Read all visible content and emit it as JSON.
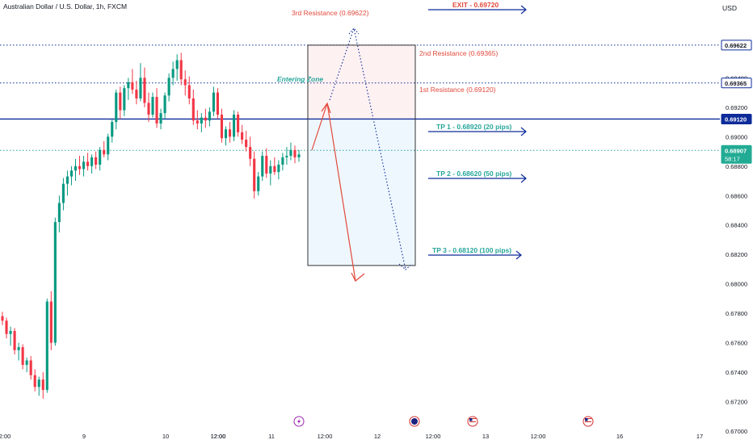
{
  "header": {
    "symbol_title": "Australian Dollar / U.S. Dollar, 1h, FXCM",
    "currency": "USD"
  },
  "colors": {
    "up": "#089981",
    "down": "#f23645",
    "blue": "#0d2b99",
    "accent": "#e2493c",
    "teal": "#26a69a",
    "price_tag": "#22ab94"
  },
  "chart_data": {
    "type": "candlestick",
    "ylim": [
      0.67,
      0.6983
    ],
    "y_ticks": [
      "0.67000",
      "0.67200",
      "0.67400",
      "0.67600",
      "0.67800",
      "0.68000",
      "0.68200",
      "0.68400",
      "0.68600",
      "0.68800",
      "0.69000",
      "0.69200",
      "0.69400"
    ],
    "x_ticks": [
      "2:00",
      "9",
      "12:00",
      "10",
      "12:00",
      "11",
      "12:00",
      "12",
      "12:00",
      "13",
      "12:00",
      "16",
      "17"
    ],
    "price_labels": [
      {
        "label": "0.69622",
        "value": 0.69622,
        "style": "outline"
      },
      {
        "label": "0.69365",
        "value": 0.69365,
        "style": "outline"
      },
      {
        "label": "0.69120",
        "value": 0.6912,
        "style": "blue"
      },
      {
        "label": "0.68907",
        "time": "58:17",
        "value": 0.68907,
        "style": "teal"
      }
    ],
    "candles": [
      [
        0.6778,
        0.6781,
        0.6772,
        0.6775
      ],
      [
        0.6775,
        0.6777,
        0.6763,
        0.6766
      ],
      [
        0.6766,
        0.6771,
        0.6758,
        0.6768
      ],
      [
        0.6768,
        0.677,
        0.6752,
        0.6755
      ],
      [
        0.6755,
        0.676,
        0.6748,
        0.6757
      ],
      [
        0.6757,
        0.6759,
        0.6742,
        0.6745
      ],
      [
        0.6745,
        0.675,
        0.674,
        0.6748
      ],
      [
        0.6748,
        0.6751,
        0.6735,
        0.6738
      ],
      [
        0.6738,
        0.6742,
        0.6727,
        0.673
      ],
      [
        0.673,
        0.6737,
        0.6724,
        0.6735
      ],
      [
        0.6735,
        0.674,
        0.6722,
        0.6728
      ],
      [
        0.6728,
        0.679,
        0.6726,
        0.6788
      ],
      [
        0.6788,
        0.6795,
        0.6755,
        0.676
      ],
      [
        0.676,
        0.6845,
        0.6758,
        0.6842
      ],
      [
        0.6842,
        0.686,
        0.6835,
        0.6855
      ],
      [
        0.6855,
        0.6872,
        0.685,
        0.6868
      ],
      [
        0.6868,
        0.6877,
        0.686,
        0.6873
      ],
      [
        0.6873,
        0.688,
        0.6867,
        0.6877
      ],
      [
        0.6877,
        0.6885,
        0.687,
        0.688
      ],
      [
        0.688,
        0.6887,
        0.6874,
        0.6878
      ],
      [
        0.6878,
        0.6887,
        0.6873,
        0.6883
      ],
      [
        0.6883,
        0.6889,
        0.6877,
        0.688
      ],
      [
        0.688,
        0.6888,
        0.6875,
        0.6886
      ],
      [
        0.6886,
        0.689,
        0.6878,
        0.6881
      ],
      [
        0.6881,
        0.6893,
        0.6877,
        0.6891
      ],
      [
        0.6891,
        0.6897,
        0.6886,
        0.6888
      ],
      [
        0.6888,
        0.6902,
        0.6884,
        0.69
      ],
      [
        0.69,
        0.6912,
        0.6896,
        0.691
      ],
      [
        0.691,
        0.6932,
        0.6905,
        0.693
      ],
      [
        0.693,
        0.6934,
        0.6912,
        0.6918
      ],
      [
        0.6918,
        0.6935,
        0.6914,
        0.6933
      ],
      [
        0.6933,
        0.694,
        0.6925,
        0.6937
      ],
      [
        0.6937,
        0.6946,
        0.6929,
        0.6932
      ],
      [
        0.6932,
        0.6938,
        0.6922,
        0.6926
      ],
      [
        0.6926,
        0.695,
        0.6924,
        0.694
      ],
      [
        0.694,
        0.6947,
        0.692,
        0.6923
      ],
      [
        0.6923,
        0.693,
        0.691,
        0.6915
      ],
      [
        0.6915,
        0.693,
        0.6913,
        0.6927
      ],
      [
        0.6927,
        0.6933,
        0.6906,
        0.6909
      ],
      [
        0.6909,
        0.6919,
        0.6905,
        0.6916
      ],
      [
        0.6916,
        0.693,
        0.6912,
        0.6928
      ],
      [
        0.6928,
        0.6943,
        0.6924,
        0.694
      ],
      [
        0.694,
        0.6951,
        0.6935,
        0.6946
      ],
      [
        0.6946,
        0.6956,
        0.6938,
        0.6952
      ],
      [
        0.6952,
        0.6957,
        0.6935,
        0.6939
      ],
      [
        0.6939,
        0.6945,
        0.6928,
        0.6935
      ],
      [
        0.6935,
        0.6941,
        0.6922,
        0.6926
      ],
      [
        0.6926,
        0.6932,
        0.6908,
        0.6911
      ],
      [
        0.6911,
        0.6918,
        0.6905,
        0.6909
      ],
      [
        0.6909,
        0.6916,
        0.6903,
        0.6913
      ],
      [
        0.6913,
        0.6919,
        0.6906,
        0.6911
      ],
      [
        0.6911,
        0.692,
        0.6907,
        0.6917
      ],
      [
        0.6917,
        0.6934,
        0.6914,
        0.693
      ],
      [
        0.693,
        0.6933,
        0.6912,
        0.6915
      ],
      [
        0.6915,
        0.6919,
        0.6896,
        0.6899
      ],
      [
        0.6899,
        0.6907,
        0.6894,
        0.6905
      ],
      [
        0.6905,
        0.691,
        0.6896,
        0.69
      ],
      [
        0.69,
        0.6918,
        0.6897,
        0.6915
      ],
      [
        0.6915,
        0.6917,
        0.69,
        0.6903
      ],
      [
        0.6903,
        0.6908,
        0.6895,
        0.6898
      ],
      [
        0.6898,
        0.6904,
        0.689,
        0.6893
      ],
      [
        0.6893,
        0.69,
        0.688,
        0.6885
      ],
      [
        0.6885,
        0.689,
        0.6858,
        0.6863
      ],
      [
        0.6863,
        0.6876,
        0.686,
        0.6873
      ],
      [
        0.6873,
        0.689,
        0.687,
        0.6887
      ],
      [
        0.6887,
        0.6892,
        0.6872,
        0.6875
      ],
      [
        0.6875,
        0.6884,
        0.6867,
        0.688
      ],
      [
        0.688,
        0.6886,
        0.6874,
        0.6876
      ],
      [
        0.6876,
        0.6884,
        0.6871,
        0.6881
      ],
      [
        0.6881,
        0.6889,
        0.6877,
        0.6886
      ],
      [
        0.6886,
        0.6893,
        0.6881,
        0.6887
      ],
      [
        0.6887,
        0.6896,
        0.6884,
        0.6891
      ],
      [
        0.6891,
        0.6894,
        0.6882,
        0.6886
      ],
      [
        0.6886,
        0.6891,
        0.6883,
        0.6888
      ]
    ],
    "horizontal_lines": [
      {
        "value": 0.69622,
        "style": "dotted",
        "color": "blue"
      },
      {
        "value": 0.69365,
        "style": "dotted",
        "color": "blue"
      },
      {
        "value": 0.6912,
        "style": "solid",
        "color": "blue"
      },
      {
        "value": 0.68907,
        "style": "dotted",
        "color": "teal"
      }
    ],
    "annotations": {
      "resistance_3": "3rd Resistance (0.69622)",
      "resistance_2": "2nd Resistance (0.69365)",
      "resistance_1": "1st Resistance (0.69120)",
      "entering_zone": "Entering Zone",
      "exit": "EXIT - 0.69720",
      "tp1": "TP 1 - 0.68920 (20 pips)",
      "tp2": "TP 2 - 0.68620 (50 pips)",
      "tp3": "TP 3 - 0.68120 (100 pips)"
    },
    "position_zone": {
      "top": 0.69622,
      "entry": 0.6912,
      "bottom": 0.68125
    },
    "event_icons": [
      "lightning-icon",
      "australia-flag-icon",
      "us-flag-icon",
      "us-flag-icon"
    ]
  }
}
